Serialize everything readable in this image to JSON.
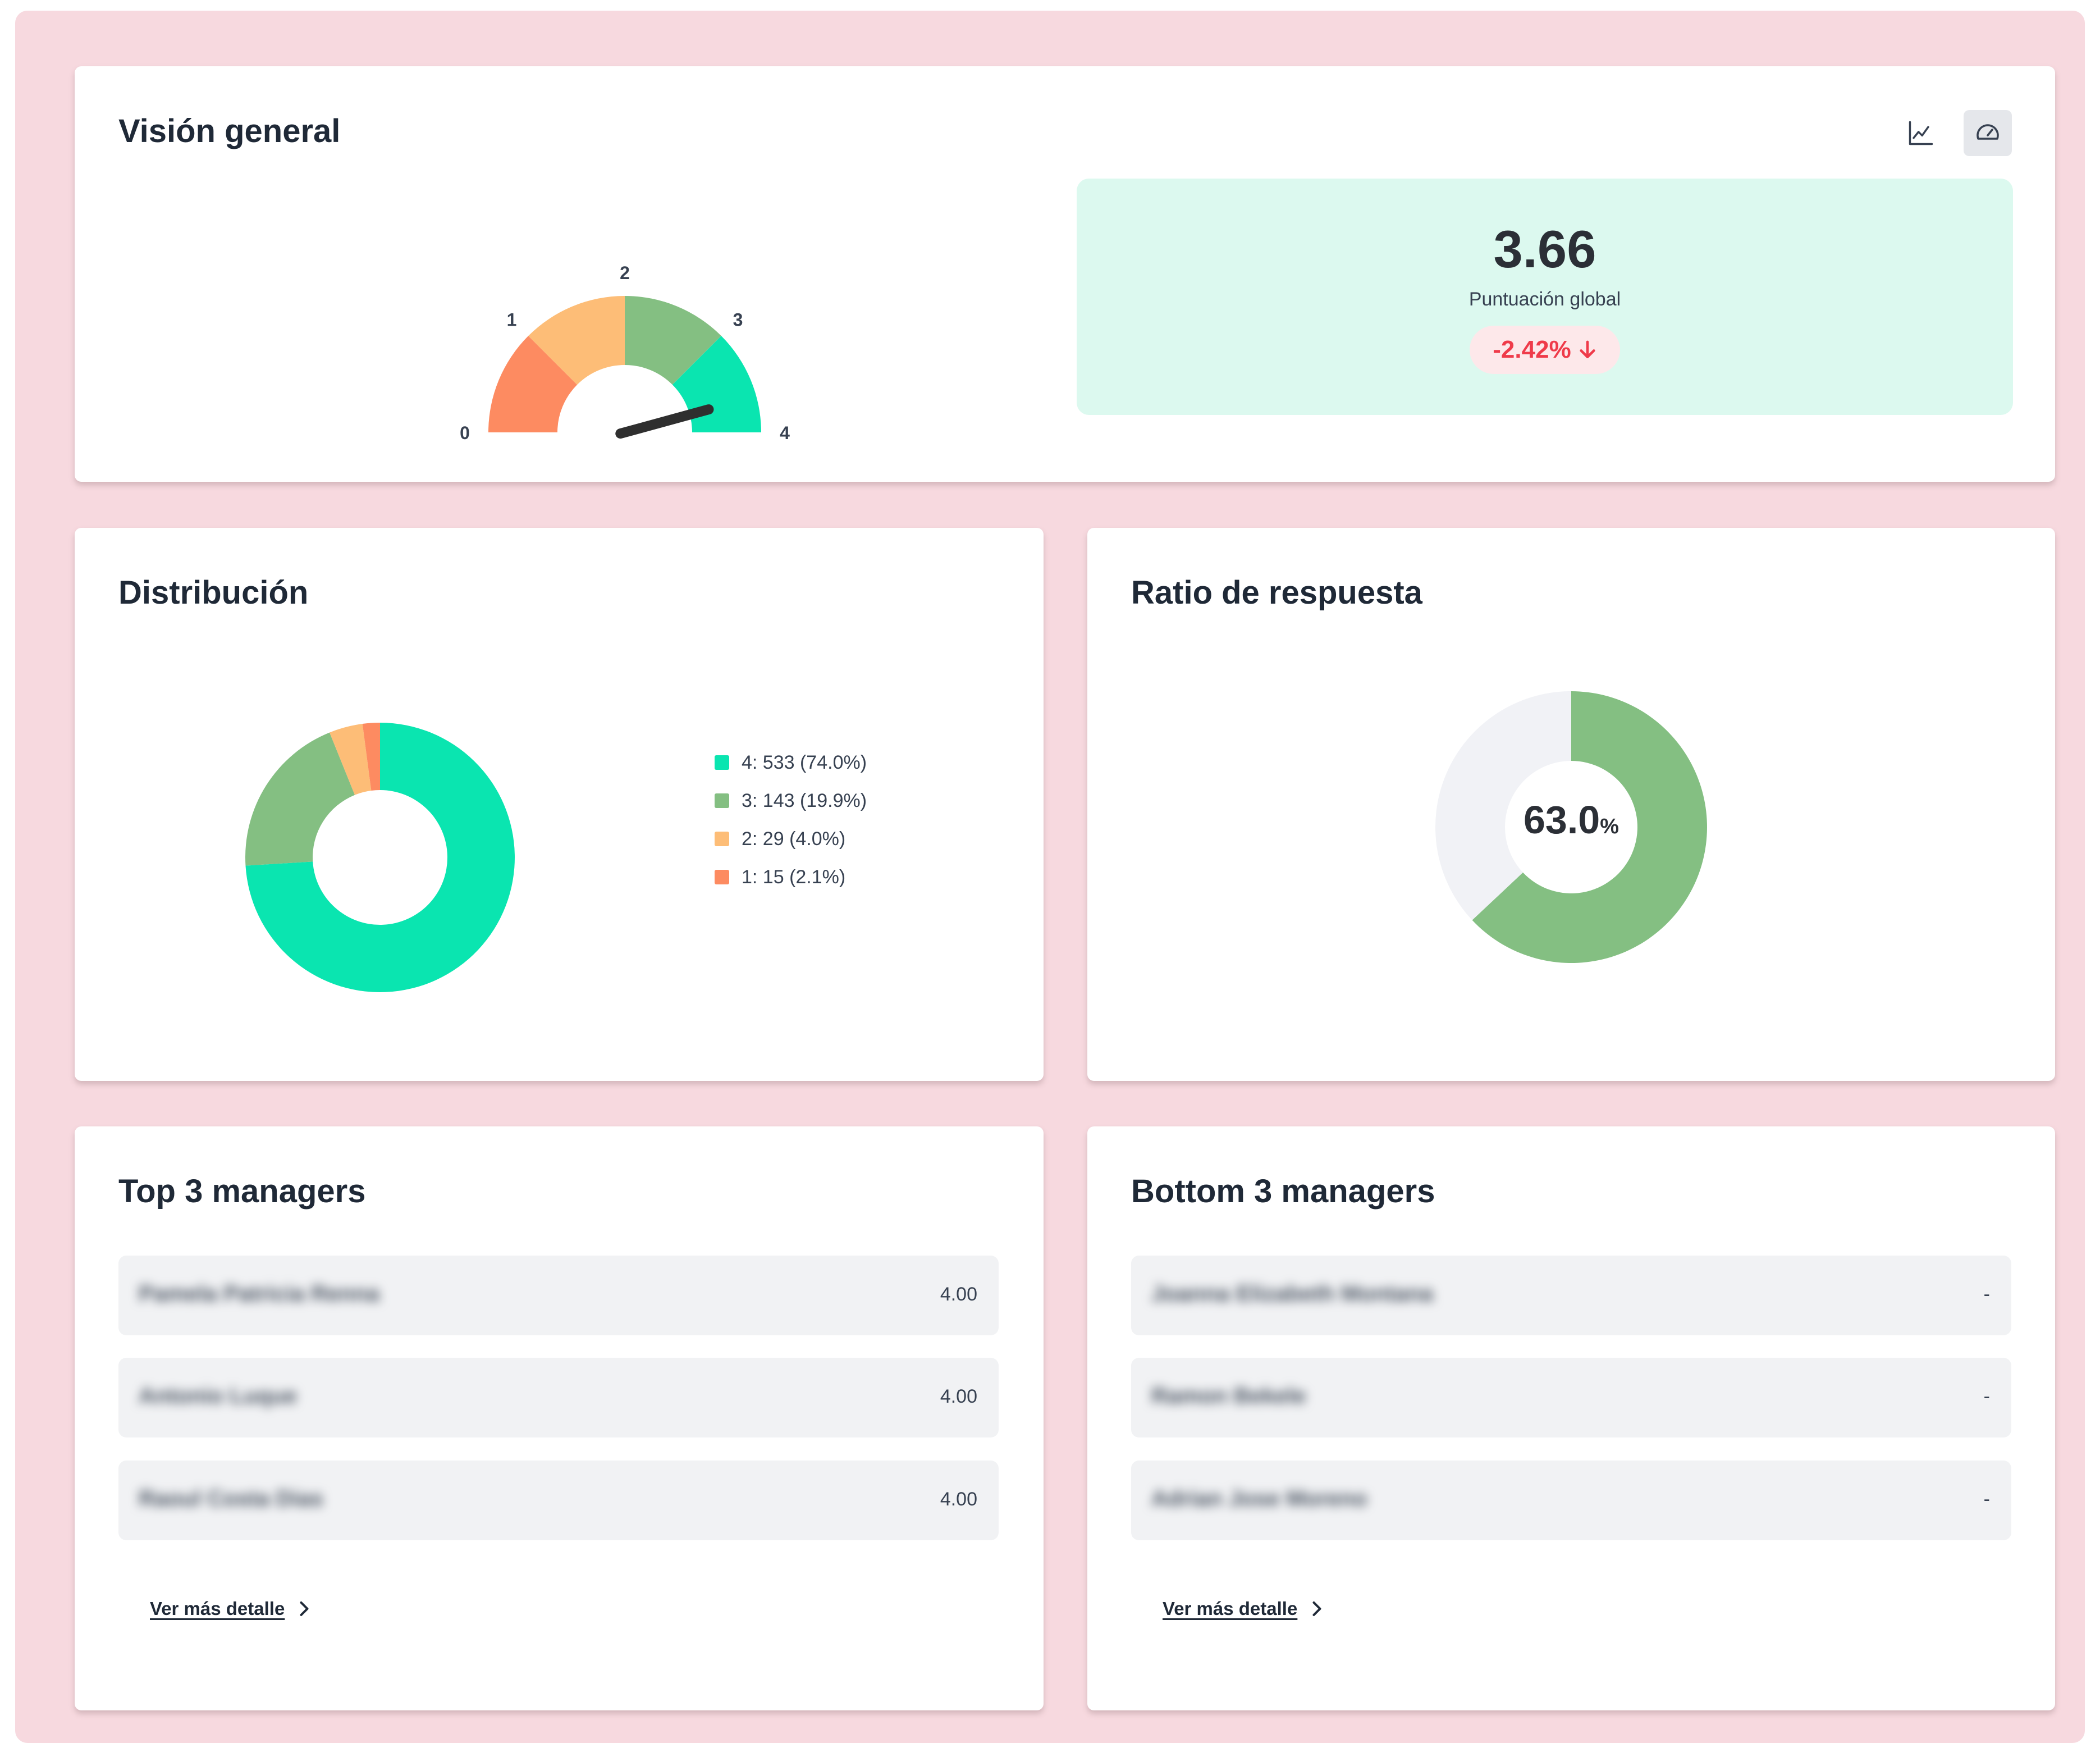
{
  "overview": {
    "title": "Visión general",
    "view_toggle": [
      {
        "icon": "line-chart-icon",
        "active": false
      },
      {
        "icon": "gauge-icon",
        "active": true
      }
    ],
    "gauge": {
      "min": 0,
      "max": 4,
      "value": 3.66,
      "tick_labels": [
        "0",
        "1",
        "2",
        "3",
        "4"
      ],
      "segment_colors": [
        "#fd8b61",
        "#fdbd77",
        "#84bf82",
        "#0ae5b0"
      ],
      "needle_color": "#2f2f2f"
    },
    "score": {
      "value": "3.66",
      "label": "Puntuación global",
      "change": "-2.42%",
      "change_icon": "arrow-down-icon",
      "change_color": "#ef3b4a",
      "panel_color": "#dcf9ef"
    }
  },
  "distribution": {
    "title": "Distribución",
    "legend": [
      {
        "label": "4: 533 (74.0%)",
        "color": "#0ae5b0"
      },
      {
        "label": "3: 143 (19.9%)",
        "color": "#84bf82"
      },
      {
        "label": "2: 29 (4.0%)",
        "color": "#fdbd77"
      },
      {
        "label": "1: 15 (2.1%)",
        "color": "#fd8b61"
      }
    ]
  },
  "response_ratio": {
    "title": "Ratio de respuesta",
    "value": "63.0",
    "unit": "%",
    "fill_color": "#84bf82",
    "track_color": "#f1f2f6"
  },
  "top_managers": {
    "title": "Top 3 managers",
    "rows": [
      {
        "name": "Pamela Patricia Renna",
        "score": "4.00"
      },
      {
        "name": "Antonio Luque",
        "score": "4.00"
      },
      {
        "name": "Raoul Costa Dias",
        "score": "4.00"
      }
    ],
    "more_link": "Ver más detalle"
  },
  "bottom_managers": {
    "title": "Bottom 3 managers",
    "rows": [
      {
        "name": "Joanna Elizabeth Montana",
        "score": "-"
      },
      {
        "name": "Ramon Bekele",
        "score": "-"
      },
      {
        "name": "Adrian Jose Moreno",
        "score": "-"
      }
    ],
    "more_link": "Ver más detalle"
  },
  "chart_data": [
    {
      "type": "gauge",
      "min": 0,
      "max": 4,
      "value": 3.66,
      "tick_labels": [
        "0",
        "1",
        "2",
        "3",
        "4"
      ]
    },
    {
      "type": "pie",
      "donut": true,
      "categories": [
        "4",
        "3",
        "2",
        "1"
      ],
      "values": [
        533,
        143,
        29,
        15
      ],
      "percentages": [
        74.0,
        19.9,
        4.0,
        2.1
      ],
      "legend": "right"
    },
    {
      "type": "pie",
      "donut": true,
      "values": [
        63.0,
        37.0
      ],
      "center_label": "63.0%"
    }
  ]
}
